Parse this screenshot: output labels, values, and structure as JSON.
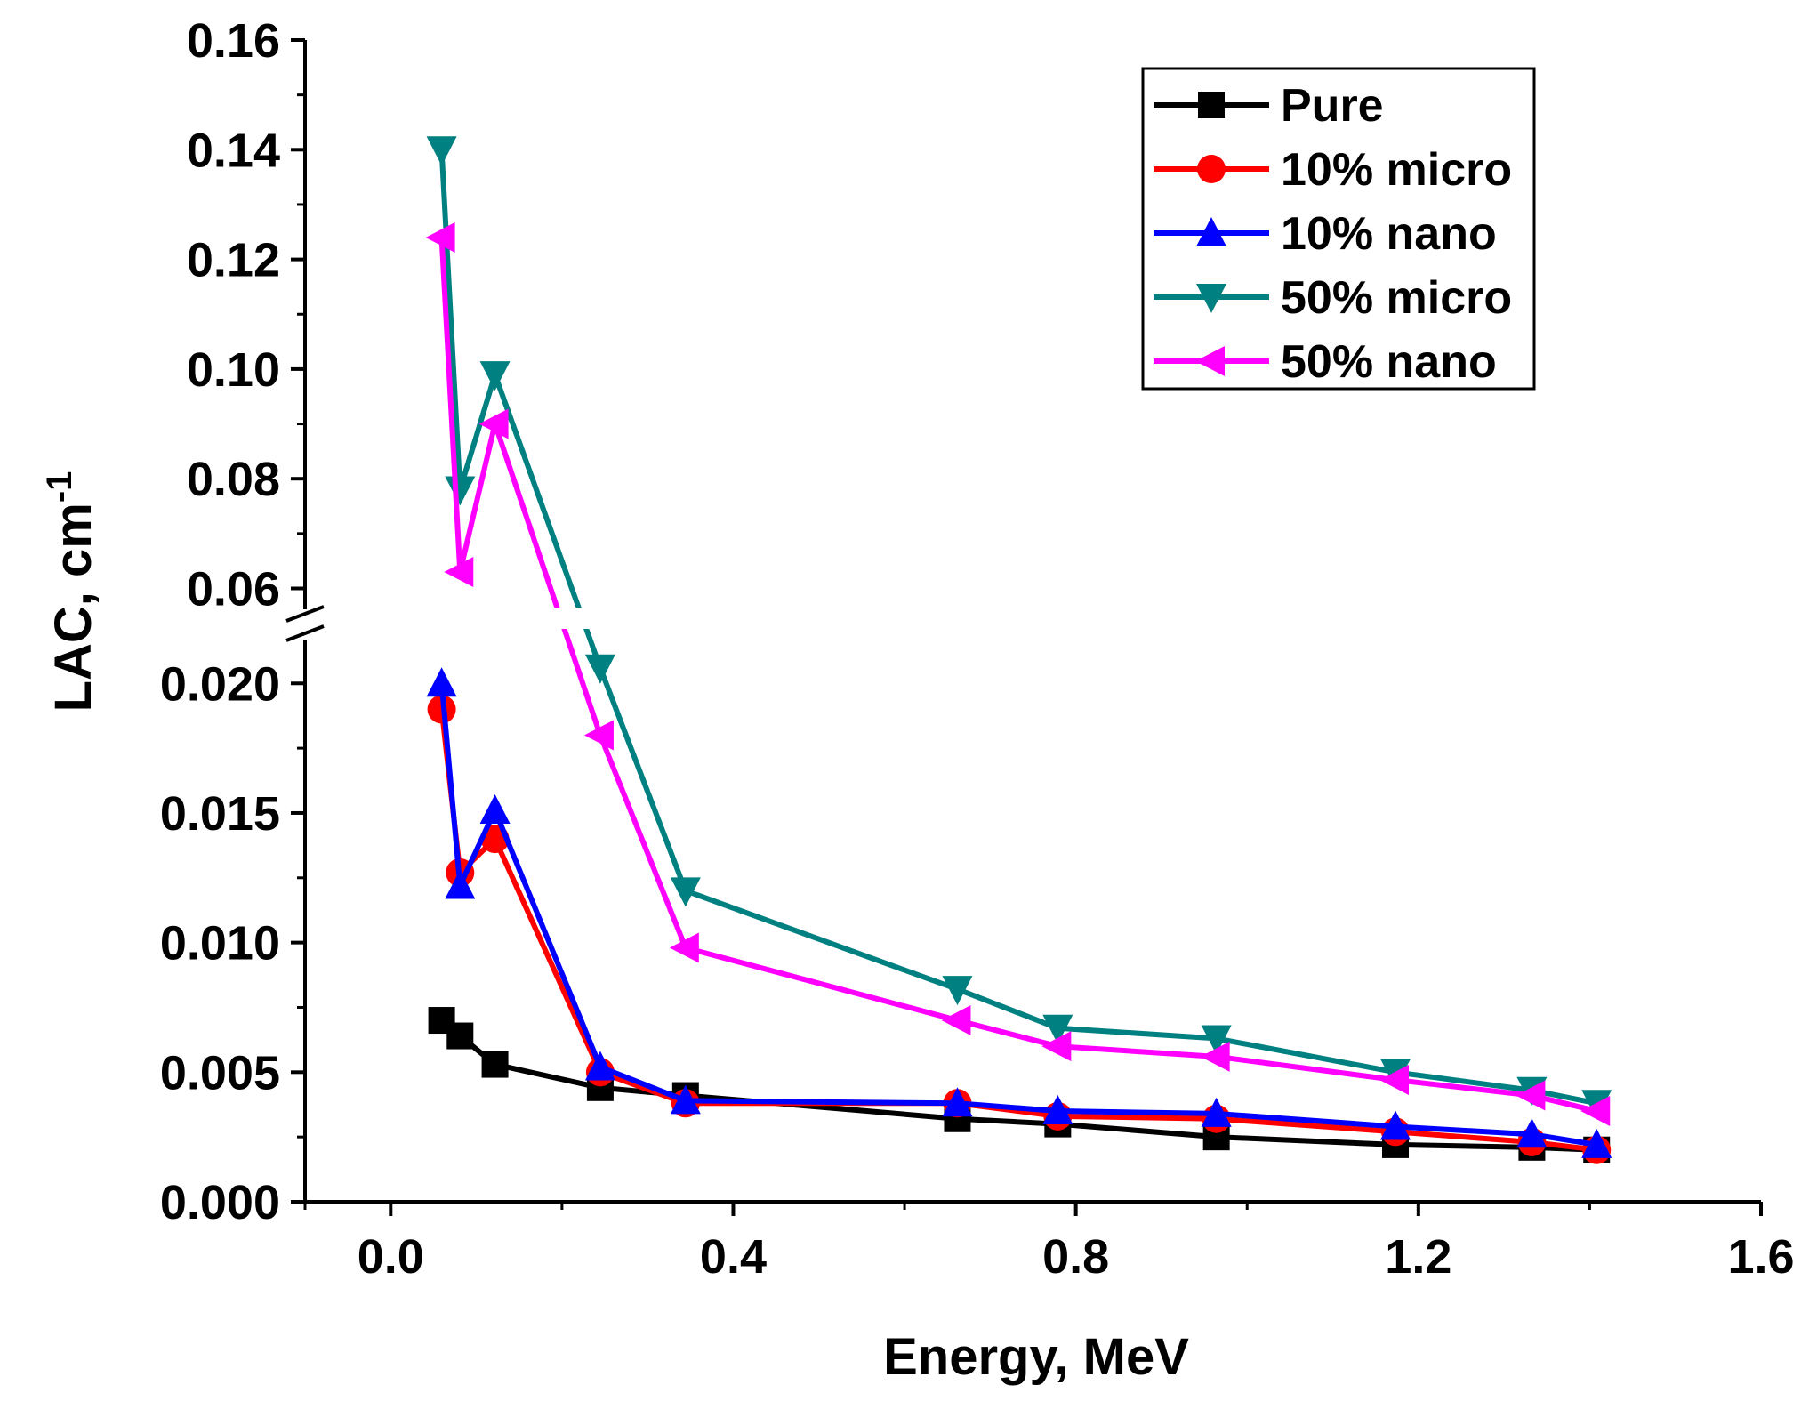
{
  "chart_data": {
    "type": "line",
    "title": "",
    "xlabel": "Energy, MeV",
    "ylabel_main": "LAC, cm",
    "ylabel_sup": "-1",
    "xlim": [
      -0.1,
      1.6
    ],
    "y_break": {
      "lower_range": [
        0.0,
        0.022
      ],
      "upper_range": [
        0.057,
        0.16
      ]
    },
    "x_ticks": [
      "0.0",
      "0.4",
      "0.8",
      "1.2",
      "1.6"
    ],
    "x_tick_values": [
      0.0,
      0.4,
      0.8,
      1.2,
      1.6
    ],
    "y_ticks_lower": [
      "0.000",
      "0.005",
      "0.010",
      "0.015",
      "0.020"
    ],
    "y_tick_values_lower": [
      0.0,
      0.005,
      0.01,
      0.015,
      0.02
    ],
    "y_ticks_upper": [
      "0.06",
      "0.08",
      "0.10",
      "0.12",
      "0.14",
      "0.16"
    ],
    "y_tick_values_upper": [
      0.06,
      0.08,
      0.1,
      0.12,
      0.14,
      0.16
    ],
    "legend_position": "top-right",
    "x": [
      0.0595,
      0.081,
      0.1218,
      0.2447,
      0.3443,
      0.6617,
      0.7789,
      0.9641,
      1.1732,
      1.3325,
      1.4081
    ],
    "series": [
      {
        "name": "Pure",
        "color": "#000000",
        "marker": "square",
        "values": [
          0.007,
          0.0064,
          0.0053,
          0.0044,
          0.0041,
          0.0032,
          0.003,
          0.0025,
          0.0022,
          0.0021,
          0.002
        ]
      },
      {
        "name": "10% micro",
        "color": "#ff0000",
        "marker": "circle",
        "values": [
          0.019,
          0.0127,
          0.014,
          0.005,
          0.0038,
          0.0038,
          0.0033,
          0.0032,
          0.0027,
          0.0023,
          0.002
        ]
      },
      {
        "name": "10% nano",
        "color": "#0000ff",
        "marker": "triangle-up",
        "values": [
          0.02,
          0.0122,
          0.0151,
          0.0052,
          0.0039,
          0.0038,
          0.0035,
          0.0034,
          0.0029,
          0.0026,
          0.0022
        ]
      },
      {
        "name": "50% micro",
        "color": "#008080",
        "marker": "triangle-down",
        "values": [
          0.14,
          0.078,
          0.099,
          0.0206,
          0.012,
          0.0082,
          0.0067,
          0.0063,
          0.005,
          0.0043,
          0.0038
        ]
      },
      {
        "name": "50% nano",
        "color": "#ff00ff",
        "marker": "triangle-left",
        "values": [
          0.124,
          0.063,
          0.09,
          0.018,
          0.0098,
          0.007,
          0.006,
          0.0056,
          0.0047,
          0.0041,
          0.0035
        ]
      }
    ]
  }
}
